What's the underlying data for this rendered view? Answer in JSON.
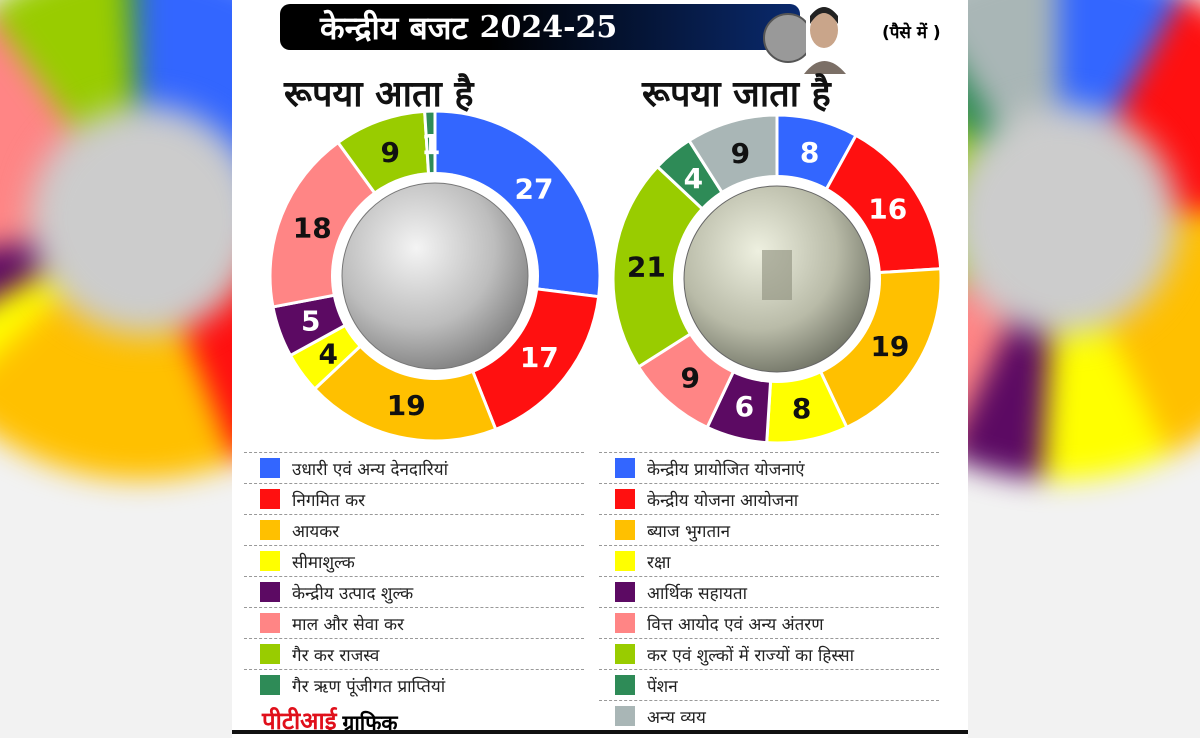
{
  "header": {
    "title": "केन्द्रीय बजट",
    "year": "2024-25",
    "unit": "(पैसे में )"
  },
  "colors": [
    "#3366ff",
    "#ff1010",
    "#ffc000",
    "#ffff00",
    "#5c0a63",
    "#ff8585",
    "#99cc00",
    "#2e8b57",
    "#a9b6b6"
  ],
  "chart_data": [
    {
      "type": "pie",
      "title": "रूपया आता है",
      "start": "top",
      "direction": "clockwise",
      "categories": [
        "उधारी एवं अन्य देनदारियां",
        "निगमित कर",
        "आयकर",
        "सीमाशुल्क",
        "केन्द्रीय उत्पाद शुल्क",
        "माल और  सेवा कर",
        "गैर कर राजस्व",
        "गैर ऋण पूंजीगत प्राप्तियां"
      ],
      "values": [
        27,
        17,
        19,
        4,
        5,
        18,
        9,
        1
      ]
    },
    {
      "type": "pie",
      "title": "रूपया जाता है",
      "start": "top",
      "direction": "clockwise",
      "categories": [
        "केन्द्रीय प्रायोजित योजनाएं",
        "केन्द्रीय योजना आयोजना",
        "ब्याज भुगतान",
        "रक्षा",
        "आर्थिक सहायता",
        "वित्त आयोद एवं अन्य अंतरण",
        "कर एवं शुल्कों में राज्यों का हिस्सा",
        "पेंशन",
        "अन्य व्यय"
      ],
      "values": [
        8,
        16,
        19,
        8,
        6,
        9,
        21,
        4,
        9
      ]
    }
  ],
  "footer": {
    "agency": "पीटीआई",
    "label": "ग्राफिक"
  }
}
